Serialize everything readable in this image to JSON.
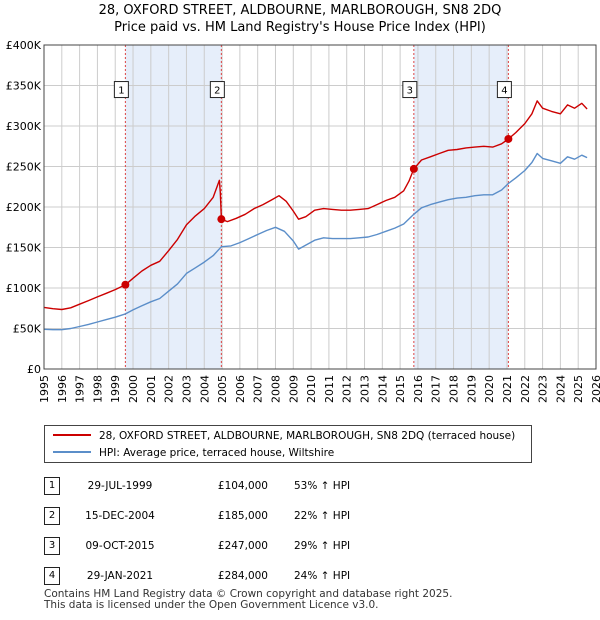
{
  "title": {
    "line1": "28, OXFORD STREET, ALDBOURNE, MARLBOROUGH, SN8 2DQ",
    "line2": "Price paid vs. HM Land Registry's House Price Index (HPI)"
  },
  "colors": {
    "property": "#cc0000",
    "hpi": "#5b8ec9",
    "shade": "#e6eefa",
    "grid": "#cccccc",
    "marker_line": "#dd4444"
  },
  "chart_data": {
    "type": "line",
    "title": "Price paid vs. HM Land Registry's House Price Index (HPI)",
    "xlabel": "",
    "ylabel": "",
    "xlim": [
      1995,
      2026
    ],
    "ylim": [
      0,
      400000
    ],
    "y_ticks": [
      {
        "value": 0,
        "label": "£0"
      },
      {
        "value": 50000,
        "label": "£50K"
      },
      {
        "value": 100000,
        "label": "£100K"
      },
      {
        "value": 150000,
        "label": "£150K"
      },
      {
        "value": 200000,
        "label": "£200K"
      },
      {
        "value": 250000,
        "label": "£250K"
      },
      {
        "value": 300000,
        "label": "£300K"
      },
      {
        "value": 350000,
        "label": "£350K"
      },
      {
        "value": 400000,
        "label": "£400K"
      }
    ],
    "x_ticks": [
      "1995",
      "1996",
      "1997",
      "1998",
      "1999",
      "2000",
      "2001",
      "2002",
      "2003",
      "2004",
      "2005",
      "2006",
      "2007",
      "2008",
      "2009",
      "2010",
      "2011",
      "2012",
      "2013",
      "2014",
      "2015",
      "2016",
      "2017",
      "2018",
      "2019",
      "2020",
      "2021",
      "2022",
      "2023",
      "2024",
      "2025",
      "2026"
    ],
    "grid": true,
    "shaded_periods": [
      [
        1999.57,
        2004.96
      ],
      [
        2015.77,
        2021.08
      ]
    ],
    "series": [
      {
        "name": "28, OXFORD STREET, ALDBOURNE, MARLBOROUGH, SN8 2DQ (terraced house)",
        "color": "#cc0000",
        "points": [
          [
            1995.0,
            76000
          ],
          [
            1995.5,
            74500
          ],
          [
            1996.0,
            73500
          ],
          [
            1996.5,
            75500
          ],
          [
            1997.0,
            80000
          ],
          [
            1997.5,
            84500
          ],
          [
            1998.0,
            89000
          ],
          [
            1998.5,
            93500
          ],
          [
            1999.0,
            98000
          ],
          [
            1999.57,
            104000
          ],
          [
            2000.0,
            112000
          ],
          [
            2000.5,
            121000
          ],
          [
            2001.0,
            128000
          ],
          [
            2001.5,
            133000
          ],
          [
            2002.0,
            146000
          ],
          [
            2002.5,
            160000
          ],
          [
            2003.0,
            178000
          ],
          [
            2003.5,
            189000
          ],
          [
            2004.0,
            198000
          ],
          [
            2004.5,
            212000
          ],
          [
            2004.85,
            233000
          ],
          [
            2004.9,
            218000
          ],
          [
            2004.96,
            185000
          ],
          [
            2005.3,
            182000
          ],
          [
            2005.8,
            186000
          ],
          [
            2006.3,
            191000
          ],
          [
            2006.8,
            198000
          ],
          [
            2007.3,
            203000
          ],
          [
            2007.8,
            209000
          ],
          [
            2008.2,
            214000
          ],
          [
            2008.6,
            207000
          ],
          [
            2009.0,
            195000
          ],
          [
            2009.3,
            185000
          ],
          [
            2009.7,
            188000
          ],
          [
            2010.2,
            196000
          ],
          [
            2010.7,
            198000
          ],
          [
            2011.2,
            197000
          ],
          [
            2011.7,
            196000
          ],
          [
            2012.2,
            196000
          ],
          [
            2012.7,
            197000
          ],
          [
            2013.2,
            198000
          ],
          [
            2013.7,
            203000
          ],
          [
            2014.2,
            208000
          ],
          [
            2014.7,
            212000
          ],
          [
            2015.2,
            220000
          ],
          [
            2015.5,
            232000
          ],
          [
            2015.77,
            247000
          ],
          [
            2016.2,
            258000
          ],
          [
            2016.7,
            262000
          ],
          [
            2017.2,
            266000
          ],
          [
            2017.7,
            270000
          ],
          [
            2018.2,
            271000
          ],
          [
            2018.7,
            273000
          ],
          [
            2019.2,
            274000
          ],
          [
            2019.7,
            275000
          ],
          [
            2020.2,
            274000
          ],
          [
            2020.7,
            278000
          ],
          [
            2021.08,
            284000
          ],
          [
            2021.5,
            292000
          ],
          [
            2022.0,
            303000
          ],
          [
            2022.4,
            315000
          ],
          [
            2022.7,
            331000
          ],
          [
            2023.0,
            322000
          ],
          [
            2023.5,
            318000
          ],
          [
            2024.0,
            315000
          ],
          [
            2024.4,
            326000
          ],
          [
            2024.8,
            322000
          ],
          [
            2025.2,
            328000
          ],
          [
            2025.5,
            321000
          ]
        ]
      },
      {
        "name": "HPI: Average price, terraced house, Wiltshire",
        "color": "#5b8ec9",
        "points": [
          [
            1995.0,
            49000
          ],
          [
            1995.5,
            48500
          ],
          [
            1996.0,
            48500
          ],
          [
            1996.5,
            50000
          ],
          [
            1997.0,
            52500
          ],
          [
            1997.5,
            55000
          ],
          [
            1998.0,
            58000
          ],
          [
            1998.5,
            61000
          ],
          [
            1999.0,
            64000
          ],
          [
            1999.57,
            68000
          ],
          [
            2000.0,
            73000
          ],
          [
            2000.5,
            78000
          ],
          [
            2001.0,
            83000
          ],
          [
            2001.5,
            87000
          ],
          [
            2002.0,
            96000
          ],
          [
            2002.5,
            105000
          ],
          [
            2003.0,
            118000
          ],
          [
            2003.5,
            125000
          ],
          [
            2004.0,
            132000
          ],
          [
            2004.5,
            140000
          ],
          [
            2004.96,
            151000
          ],
          [
            2005.5,
            152000
          ],
          [
            2006.0,
            156000
          ],
          [
            2006.5,
            161000
          ],
          [
            2007.0,
            166000
          ],
          [
            2007.5,
            171000
          ],
          [
            2008.0,
            175000
          ],
          [
            2008.5,
            170000
          ],
          [
            2009.0,
            158000
          ],
          [
            2009.3,
            148000
          ],
          [
            2009.7,
            153000
          ],
          [
            2010.2,
            159000
          ],
          [
            2010.7,
            162000
          ],
          [
            2011.2,
            161000
          ],
          [
            2011.7,
            161000
          ],
          [
            2012.2,
            161000
          ],
          [
            2012.7,
            162000
          ],
          [
            2013.2,
            163000
          ],
          [
            2013.7,
            166000
          ],
          [
            2014.2,
            170000
          ],
          [
            2014.7,
            174000
          ],
          [
            2015.2,
            179000
          ],
          [
            2015.77,
            191000
          ],
          [
            2016.2,
            199000
          ],
          [
            2016.7,
            203000
          ],
          [
            2017.2,
            206000
          ],
          [
            2017.7,
            209000
          ],
          [
            2018.2,
            211000
          ],
          [
            2018.7,
            212000
          ],
          [
            2019.2,
            214000
          ],
          [
            2019.7,
            215000
          ],
          [
            2020.2,
            215000
          ],
          [
            2020.7,
            221000
          ],
          [
            2021.08,
            229000
          ],
          [
            2021.5,
            236000
          ],
          [
            2022.0,
            245000
          ],
          [
            2022.4,
            255000
          ],
          [
            2022.7,
            266000
          ],
          [
            2023.0,
            260000
          ],
          [
            2023.5,
            257000
          ],
          [
            2024.0,
            254000
          ],
          [
            2024.4,
            262000
          ],
          [
            2024.8,
            259000
          ],
          [
            2025.2,
            264000
          ],
          [
            2025.5,
            261000
          ]
        ]
      }
    ],
    "sales": [
      {
        "label": "1",
        "x": 1999.57,
        "value": 104000
      },
      {
        "label": "2",
        "x": 2004.96,
        "value": 185000
      },
      {
        "label": "3",
        "x": 2015.77,
        "value": 247000
      },
      {
        "label": "4",
        "x": 2021.08,
        "value": 284000
      }
    ]
  },
  "legend": {
    "property_label": "28, OXFORD STREET, ALDBOURNE, MARLBOROUGH, SN8 2DQ (terraced house)",
    "hpi_label": "HPI: Average price, terraced house, Wiltshire"
  },
  "sales_table": [
    {
      "num": "1",
      "date": "29-JUL-1999",
      "price": "£104,000",
      "hpi": "53% ↑ HPI"
    },
    {
      "num": "2",
      "date": "15-DEC-2004",
      "price": "£185,000",
      "hpi": "22% ↑ HPI"
    },
    {
      "num": "3",
      "date": "09-OCT-2015",
      "price": "£247,000",
      "hpi": "29% ↑ HPI"
    },
    {
      "num": "4",
      "date": "29-JAN-2021",
      "price": "£284,000",
      "hpi": "24% ↑ HPI"
    }
  ],
  "footer": {
    "line1": "Contains HM Land Registry data © Crown copyright and database right 2025.",
    "line2": "This data is licensed under the Open Government Licence v3.0."
  }
}
